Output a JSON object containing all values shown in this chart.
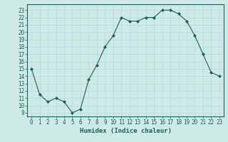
{
  "x": [
    0,
    1,
    2,
    3,
    4,
    5,
    6,
    7,
    8,
    9,
    10,
    11,
    12,
    13,
    14,
    15,
    16,
    17,
    18,
    19,
    20,
    21,
    22,
    23
  ],
  "y": [
    15,
    11.5,
    10.5,
    11,
    10.5,
    9,
    9.5,
    13.5,
    15.5,
    18,
    19.5,
    22,
    21.5,
    21.5,
    22,
    22,
    23,
    23,
    22.5,
    21.5,
    19.5,
    17,
    14.5,
    14
  ],
  "line_color": "#1a5f5a",
  "marker": "D",
  "marker_size": 2.0,
  "bg_color": "#ceeae7",
  "grid_color": "#aed4d0",
  "xlabel": "Humidex (Indice chaleur)",
  "xlim": [
    -0.5,
    23.5
  ],
  "ylim": [
    8.5,
    23.8
  ],
  "yticks": [
    9,
    10,
    11,
    12,
    13,
    14,
    15,
    16,
    17,
    18,
    19,
    20,
    21,
    22,
    23
  ],
  "xticks": [
    0,
    1,
    2,
    3,
    4,
    5,
    6,
    7,
    8,
    9,
    10,
    11,
    12,
    13,
    14,
    15,
    16,
    17,
    18,
    19,
    20,
    21,
    22,
    23
  ],
  "tick_fontsize": 5.5,
  "xlabel_fontsize": 6.5,
  "tick_color": "#1a5f5a",
  "label_color": "#1a5f5a",
  "axis_color": "#1a5f5a"
}
